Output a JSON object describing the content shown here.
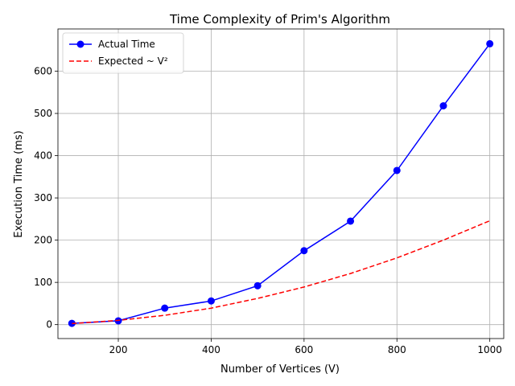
{
  "chart_data": {
    "type": "line",
    "title": "Time Complexity of Prim's Algorithm",
    "xlabel": "Number of Vertices (V)",
    "ylabel": "Execution Time (ms)",
    "xlim": [
      70,
      1030
    ],
    "ylim": [
      -33,
      700
    ],
    "xticks": [
      200,
      400,
      600,
      800,
      1000
    ],
    "yticks": [
      0,
      100,
      200,
      300,
      400,
      500,
      600
    ],
    "grid": true,
    "legend_position": "top-left",
    "x": [
      100,
      200,
      300,
      400,
      500,
      600,
      700,
      800,
      900,
      1000
    ],
    "series": [
      {
        "name": "Actual Time",
        "values": [
          3,
          9,
          39,
          56,
          92,
          175,
          245,
          365,
          518,
          665
        ],
        "color": "#0000ff",
        "style": "solid",
        "marker": "circle"
      },
      {
        "name": "Expected ~ V²",
        "values": [
          2.5,
          10,
          22,
          39,
          62,
          89,
          121,
          158,
          200,
          246
        ],
        "color": "#ff0000",
        "style": "dashed",
        "marker": "none"
      }
    ]
  }
}
